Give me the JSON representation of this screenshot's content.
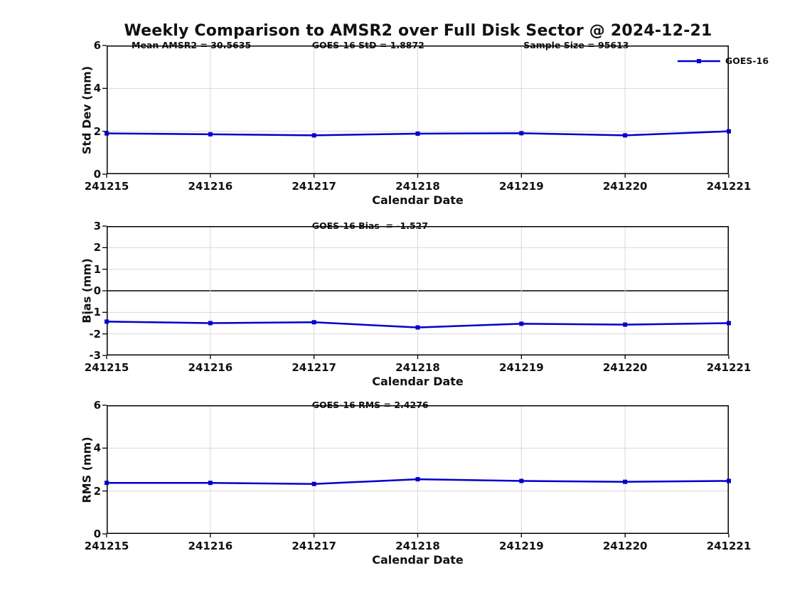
{
  "page_title": "Weekly Comparison to AMSR2 over Full Disk Sector @ 2024-12-21",
  "legend": {
    "series_label": "GOES-16"
  },
  "colors": {
    "line": "#0000cc",
    "grid": "#d8d8d8",
    "axis": "#000000",
    "text": "#111111"
  },
  "chart_data": [
    {
      "type": "line",
      "name": "std-dev",
      "annotations": {
        "left": "Mean AMSR2 = 30.5635",
        "center": "GOES-16 StD = 1.8872",
        "right": "Sample Size = 95613"
      },
      "ylabel": "Std Dev (mm)",
      "xlabel": "Calendar Date",
      "x": [
        "241215",
        "241216",
        "241217",
        "241218",
        "241219",
        "241220",
        "241221"
      ],
      "ylim": [
        0,
        6
      ],
      "yticks": [
        0,
        2,
        4,
        6
      ],
      "grid": true,
      "zero_line": false,
      "legend_position": "top-right",
      "series": [
        {
          "name": "GOES-16",
          "values": [
            1.9,
            1.86,
            1.81,
            1.89,
            1.91,
            1.81,
            2.0
          ]
        }
      ]
    },
    {
      "type": "line",
      "name": "bias",
      "annotations": {
        "center": "GOES-16 Bias  = -1.527"
      },
      "ylabel": "Bias (mm)",
      "xlabel": "Calendar Date",
      "x": [
        "241215",
        "241216",
        "241217",
        "241218",
        "241219",
        "241220",
        "241221"
      ],
      "ylim": [
        -3,
        3
      ],
      "yticks": [
        -3,
        -2,
        -1,
        0,
        1,
        2,
        3
      ],
      "grid": true,
      "zero_line": true,
      "legend_position": "none",
      "series": [
        {
          "name": "GOES-16",
          "values": [
            -1.43,
            -1.5,
            -1.46,
            -1.7,
            -1.53,
            -1.57,
            -1.5
          ]
        }
      ]
    },
    {
      "type": "line",
      "name": "rms",
      "annotations": {
        "center": "GOES-16 RMS = 2.4276"
      },
      "ylabel": "RMS (mm)",
      "xlabel": "Calendar Date",
      "x": [
        "241215",
        "241216",
        "241217",
        "241218",
        "241219",
        "241220",
        "241221"
      ],
      "ylim": [
        0,
        6
      ],
      "yticks": [
        0,
        2,
        4,
        6
      ],
      "grid": true,
      "zero_line": false,
      "legend_position": "none",
      "series": [
        {
          "name": "GOES-16",
          "values": [
            2.38,
            2.38,
            2.33,
            2.55,
            2.47,
            2.43,
            2.47
          ]
        }
      ]
    }
  ]
}
